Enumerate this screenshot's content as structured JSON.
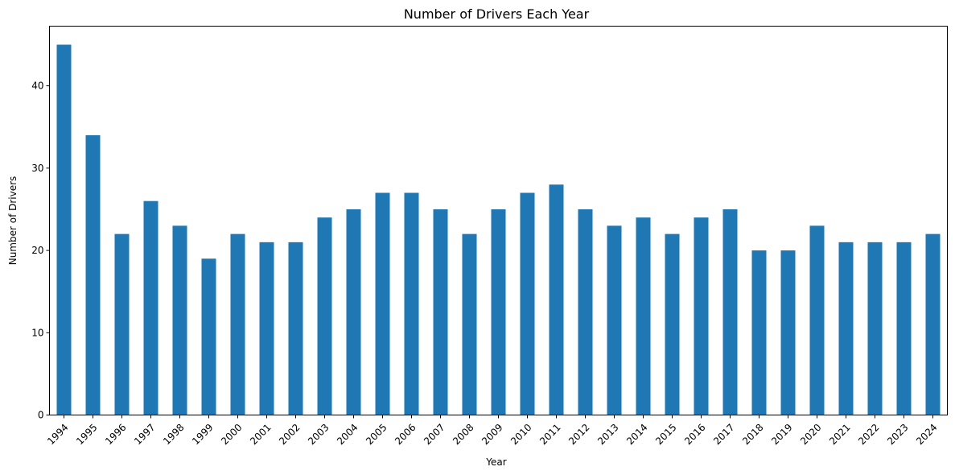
{
  "chart_data": {
    "type": "bar",
    "title": "Number of Drivers Each Year",
    "xlabel": "Year",
    "ylabel": "Number of Drivers",
    "ylim": [
      0,
      47.25
    ],
    "yticks": [
      0,
      10,
      20,
      30,
      40
    ],
    "grid": false,
    "color": "#1f77b4",
    "categories": [
      "1994",
      "1995",
      "1996",
      "1997",
      "1998",
      "1999",
      "2000",
      "2001",
      "2002",
      "2003",
      "2004",
      "2005",
      "2006",
      "2007",
      "2008",
      "2009",
      "2010",
      "2011",
      "2012",
      "2013",
      "2014",
      "2015",
      "2016",
      "2017",
      "2018",
      "2019",
      "2020",
      "2021",
      "2022",
      "2023",
      "2024"
    ],
    "values": [
      45,
      34,
      22,
      26,
      23,
      19,
      22,
      21,
      21,
      24,
      25,
      27,
      27,
      25,
      22,
      25,
      27,
      28,
      25,
      23,
      24,
      22,
      24,
      25,
      20,
      20,
      23,
      21,
      21,
      21,
      22
    ]
  }
}
